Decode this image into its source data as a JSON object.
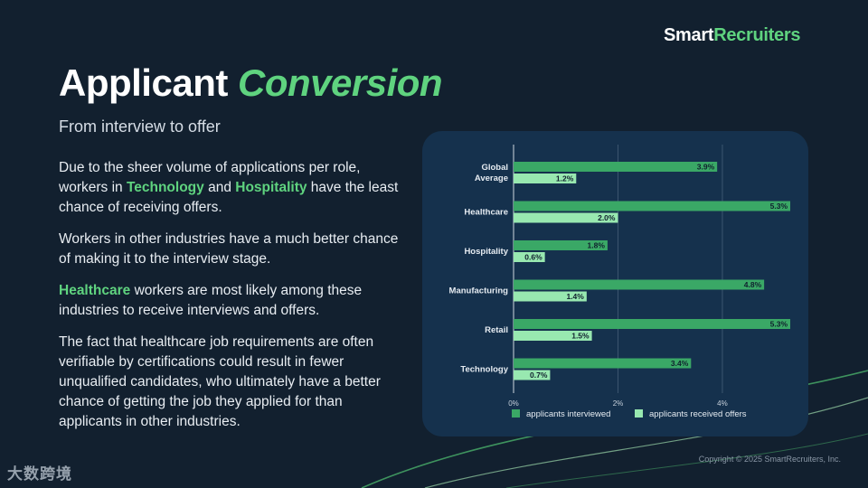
{
  "brand": {
    "part1": "Smart",
    "part2": "Recruiters"
  },
  "title": {
    "part1": "Applicant",
    "part2": "Conversion"
  },
  "subtitle": "From interview to offer",
  "paragraphs": {
    "p1": {
      "a": "Due to the sheer volume of applications per role, workers in ",
      "b": "Technology",
      "c": " and ",
      "d": "Hospitality",
      "e": " have the least chance of receiving offers."
    },
    "p2": "Workers in other industries have a much better chance of making it to the interview stage.",
    "p3": {
      "a": "Healthcare",
      "b": " workers are most likely among these industries to receive interviews and offers."
    },
    "p4": "The fact that healthcare job requirements are often verifiable by certifications could result in fewer unqualified candidates, who ultimately have a better chance of getting the job they applied for than applicants in other industries."
  },
  "copyright": "Copyright © 2025 SmartRecruiters, Inc.",
  "watermark": "大数跨境",
  "colors": {
    "interviewed": "#3aa866",
    "offers": "#98e8b0",
    "grid": "#3c5670",
    "accent": "#5fd37f"
  },
  "chart_data": {
    "type": "bar",
    "orientation": "horizontal",
    "categories": [
      "Global Average",
      "Healthcare",
      "Hospitality",
      "Manufacturing",
      "Retail",
      "Technology"
    ],
    "category_lines": [
      [
        "Global",
        "Average"
      ],
      [
        "Healthcare"
      ],
      [
        "Hospitality"
      ],
      [
        "Manufacturing"
      ],
      [
        "Retail"
      ],
      [
        "Technology"
      ]
    ],
    "series": [
      {
        "name": "applicants interviewed",
        "values": [
          3.9,
          5.3,
          1.8,
          4.8,
          5.3,
          3.4
        ]
      },
      {
        "name": "applicants received offers",
        "values": [
          1.2,
          2.0,
          0.6,
          1.4,
          1.5,
          0.7
        ]
      }
    ],
    "value_labels": [
      [
        "3.9%",
        "5.3%",
        "1.8%",
        "4.8%",
        "5.3%",
        "3.4%"
      ],
      [
        "1.2%",
        "2.0%",
        "0.6%",
        "1.4%",
        "1.5%",
        "0.7%"
      ]
    ],
    "xticks": [
      0,
      2,
      4
    ],
    "xtick_labels": [
      "0%",
      "2%",
      "4%"
    ],
    "xlim": [
      0,
      5.3
    ],
    "grid": true,
    "legend_position": "bottom"
  }
}
